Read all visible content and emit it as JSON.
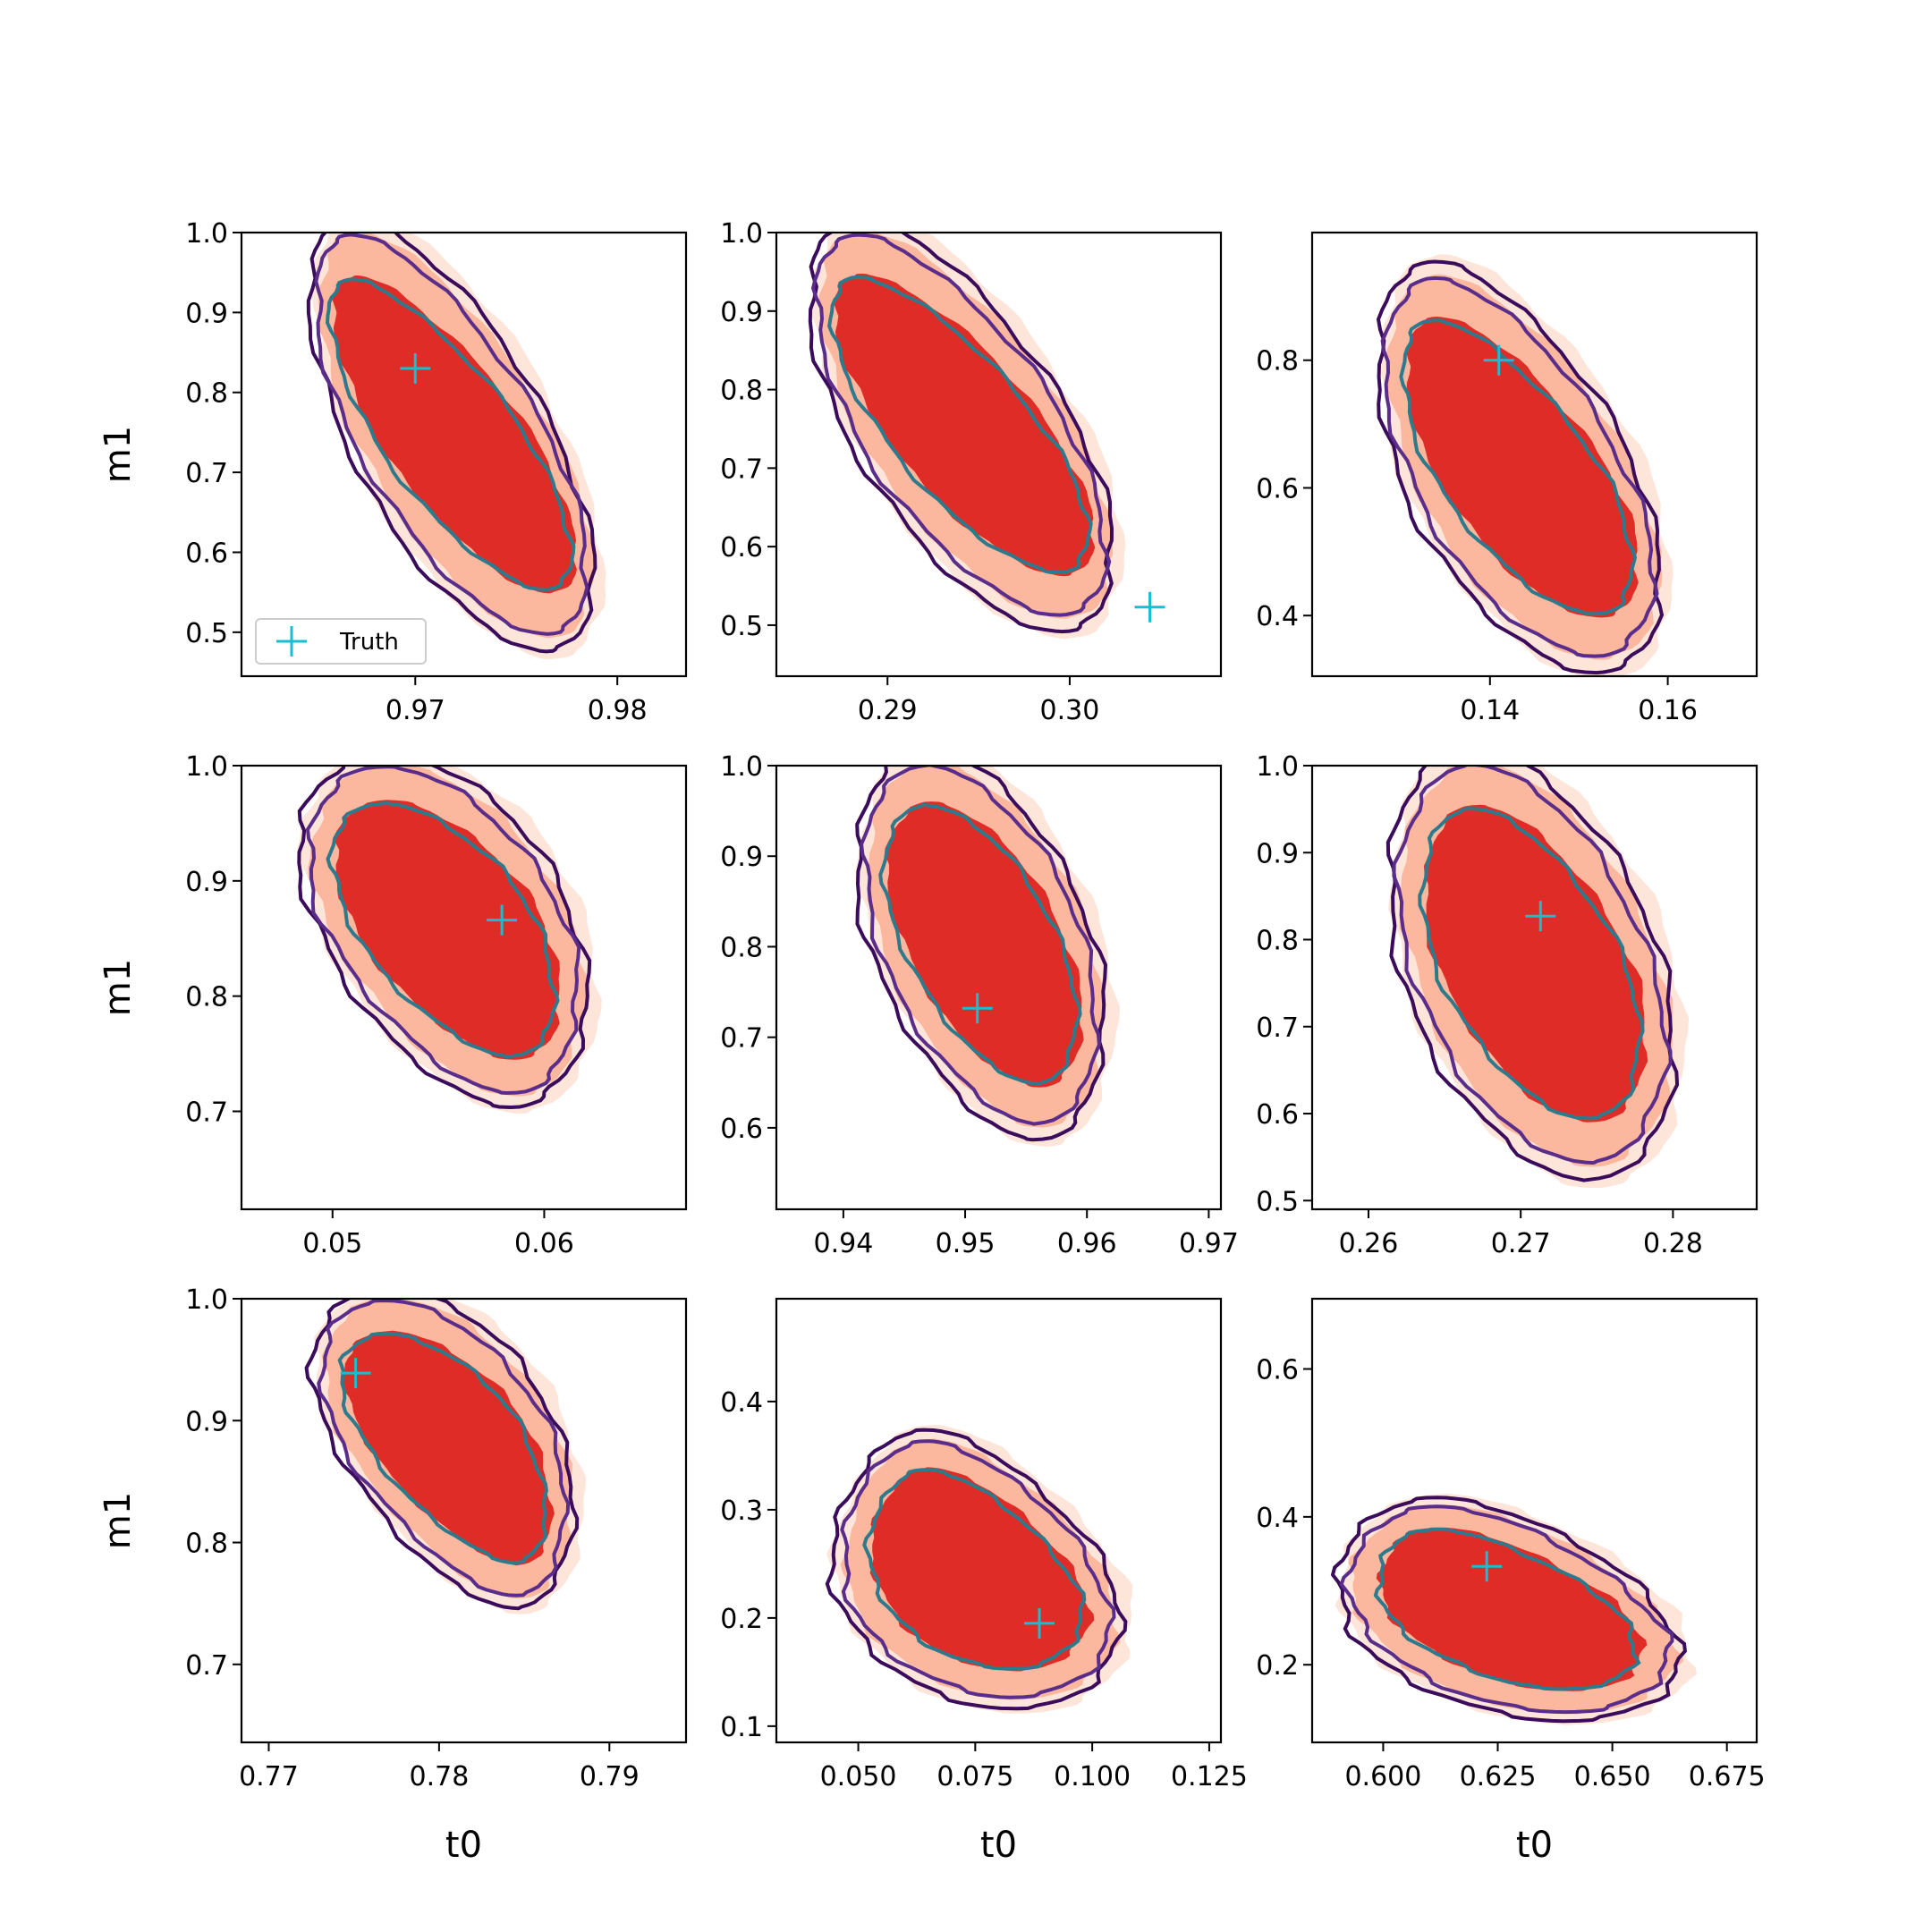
{
  "figure": {
    "ylabel": "m1",
    "xlabel": "t0",
    "legend_label": "Truth"
  },
  "colors": {
    "fill_outer": "#fee5d9",
    "fill_mid": "#fcb89e",
    "fill_inner": "#df2c26",
    "line_outer": "#3b0b5c",
    "line_mid": "#5a2d8a",
    "line_inner": "#2e7a8c",
    "truth_marker": "#17becf"
  },
  "chart_data": [
    {
      "type": "contour",
      "xlim": [
        0.9614,
        0.9834
      ],
      "ylim": [
        0.445,
        1.0
      ],
      "xticks": [
        "0.97",
        "0.98"
      ],
      "yticks": [
        "0.5",
        "0.6",
        "0.7",
        "0.8",
        "0.9",
        "1.0"
      ],
      "truth": [
        0.97,
        0.83
      ],
      "contour": {
        "top_y": 0.99,
        "top_x": 0.967,
        "bottom_y": 0.505,
        "bottom_x": 0.9765,
        "width_top": 0.0045,
        "width_bottom": 0.005
      }
    },
    {
      "type": "contour",
      "xlim": [
        0.2839,
        0.3083
      ],
      "ylim": [
        0.435,
        1.0
      ],
      "xticks": [
        "0.29",
        "0.30"
      ],
      "yticks": [
        "0.5",
        "0.6",
        "0.7",
        "0.8",
        "0.9",
        "1.0"
      ],
      "truth": [
        0.3044,
        0.523
      ],
      "contour": {
        "top_y": 0.99,
        "top_x": 0.2885,
        "bottom_y": 0.52,
        "bottom_x": 0.2995,
        "width_top": 0.0055,
        "width_bottom": 0.006
      }
    },
    {
      "type": "contour",
      "xlim": [
        0.12,
        0.17
      ],
      "ylim": [
        0.305,
        1.0
      ],
      "xticks": [
        "0.14",
        "0.16"
      ],
      "yticks": [
        "0.4",
        "0.6",
        "0.8"
      ],
      "truth": [
        0.141,
        0.8
      ],
      "contour": {
        "top_y": 0.92,
        "top_x": 0.134,
        "bottom_y": 0.345,
        "bottom_x": 0.152,
        "width_top": 0.011,
        "width_bottom": 0.013
      }
    },
    {
      "type": "contour",
      "xlim": [
        0.0457,
        0.0667
      ],
      "ylim": [
        0.615,
        1.0
      ],
      "xticks": [
        "0.05",
        "0.06"
      ],
      "yticks": [
        "0.7",
        "0.8",
        "0.9",
        "1.0"
      ],
      "truth": [
        0.058,
        0.866
      ],
      "contour": {
        "top_y": 0.995,
        "top_x": 0.0525,
        "bottom_y": 0.72,
        "bottom_x": 0.0585,
        "width_top": 0.006,
        "width_bottom": 0.005
      }
    },
    {
      "type": "contour",
      "xlim": [
        0.9345,
        0.971
      ],
      "ylim": [
        0.51,
        1.0
      ],
      "xticks": [
        "0.94",
        "0.95",
        "0.96",
        "0.97"
      ],
      "yticks": [
        "0.6",
        "0.7",
        "0.8",
        "0.9",
        "1.0"
      ],
      "truth": [
        0.951,
        0.732
      ],
      "contour": {
        "top_y": 0.995,
        "top_x": 0.947,
        "bottom_y": 0.61,
        "bottom_x": 0.956,
        "width_top": 0.0085,
        "width_bottom": 0.008
      }
    },
    {
      "type": "contour",
      "xlim": [
        0.2563,
        0.2855
      ],
      "ylim": [
        0.49,
        1.0
      ],
      "xticks": [
        "0.26",
        "0.27",
        "0.28"
      ],
      "yticks": [
        "0.5",
        "0.6",
        "0.7",
        "0.8",
        "0.9",
        "1.0"
      ],
      "truth": [
        0.2713,
        0.827
      ],
      "contour": {
        "top_y": 0.995,
        "top_x": 0.267,
        "bottom_y": 0.55,
        "bottom_x": 0.2745,
        "width_top": 0.0075,
        "width_bottom": 0.008
      }
    },
    {
      "type": "contour",
      "xlim": [
        0.7684,
        0.7945
      ],
      "ylim": [
        0.636,
        1.0
      ],
      "xticks": [
        "0.77",
        "0.78",
        "0.79"
      ],
      "yticks": [
        "0.7",
        "0.8",
        "0.9",
        "1.0"
      ],
      "truth": [
        0.7751,
        0.939
      ],
      "contour": {
        "top_y": 0.995,
        "top_x": 0.777,
        "bottom_y": 0.76,
        "bottom_x": 0.7845,
        "width_top": 0.007,
        "width_bottom": 0.005
      }
    },
    {
      "type": "contour",
      "xlim": [
        0.0325,
        0.1275
      ],
      "ylim": [
        0.085,
        0.495
      ],
      "xticks": [
        "0.050",
        "0.075",
        "0.100",
        "0.125"
      ],
      "yticks": [
        "0.1",
        "0.2",
        "0.3",
        "0.4"
      ],
      "truth": [
        0.0887,
        0.195
      ],
      "contour": {
        "top_y": 0.36,
        "top_x": 0.065,
        "bottom_y": 0.13,
        "bottom_x": 0.083,
        "width_top": 0.02,
        "width_bottom": 0.032
      }
    },
    {
      "type": "contour",
      "xlim": [
        0.5845,
        0.6815
      ],
      "ylim": [
        0.095,
        0.695
      ],
      "xticks": [
        "0.600",
        "0.625",
        "0.650",
        "0.675"
      ],
      "yticks": [
        "0.2",
        "0.4",
        "0.6"
      ],
      "truth": [
        0.6226,
        0.333
      ],
      "contour": {
        "top_y": 0.41,
        "top_x": 0.612,
        "bottom_y": 0.14,
        "bottom_x": 0.64,
        "width_top": 0.026,
        "width_bottom": 0.036
      }
    }
  ]
}
